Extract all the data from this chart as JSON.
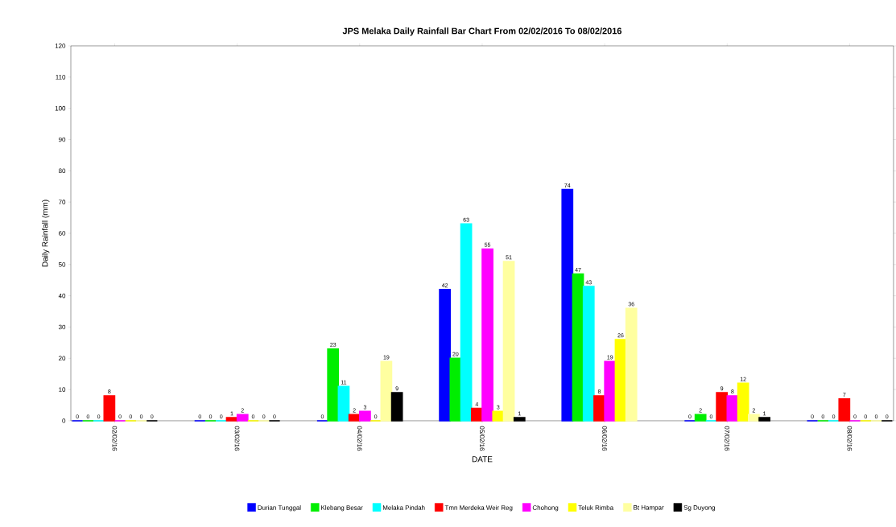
{
  "chart_data": {
    "type": "bar",
    "title": "JPS Melaka Daily Rainfall Bar Chart From 02/02/2016 To 08/02/2016",
    "xlabel": "DATE",
    "ylabel": "Daily Rainfall (mm)",
    "categories": [
      "02/02/16",
      "03/02/16",
      "04/02/16",
      "05/02/16",
      "06/02/16",
      "07/02/16",
      "08/02/16"
    ],
    "series": [
      {
        "name": "Durian Tunggal",
        "color": "#0000ff",
        "values": [
          0,
          0,
          0,
          42,
          74,
          0,
          0
        ]
      },
      {
        "name": "Klebang Besar",
        "color": "#00ee00",
        "values": [
          0,
          0,
          23,
          20,
          47,
          2,
          0
        ]
      },
      {
        "name": "Melaka Pindah",
        "color": "#00ffff",
        "values": [
          0,
          0,
          11,
          63,
          43,
          0,
          0
        ]
      },
      {
        "name": "Tmn Merdeka Weir Reg",
        "color": "#ff0000",
        "values": [
          8,
          1,
          2,
          4,
          8,
          9,
          7
        ]
      },
      {
        "name": "Chohong",
        "color": "#ff00ff",
        "values": [
          0,
          2,
          3,
          55,
          19,
          8,
          0
        ]
      },
      {
        "name": "Teluk Rimba",
        "color": "#ffff00",
        "values": [
          0,
          0,
          0,
          3,
          26,
          12,
          0
        ]
      },
      {
        "name": "Bt Hampar",
        "color": "#ffffa0",
        "values": [
          0,
          0,
          19,
          51,
          36,
          2,
          0
        ]
      },
      {
        "name": "Sg Duyong",
        "color": "#000000",
        "values": [
          0,
          0,
          9,
          1,
          null,
          1,
          0
        ]
      }
    ],
    "ylim": [
      0,
      120
    ],
    "yticks": [
      0,
      10,
      20,
      30,
      40,
      50,
      60,
      70,
      80,
      90,
      100,
      110,
      120
    ],
    "data_labels": true,
    "legend": "bottom",
    "grid": false
  }
}
